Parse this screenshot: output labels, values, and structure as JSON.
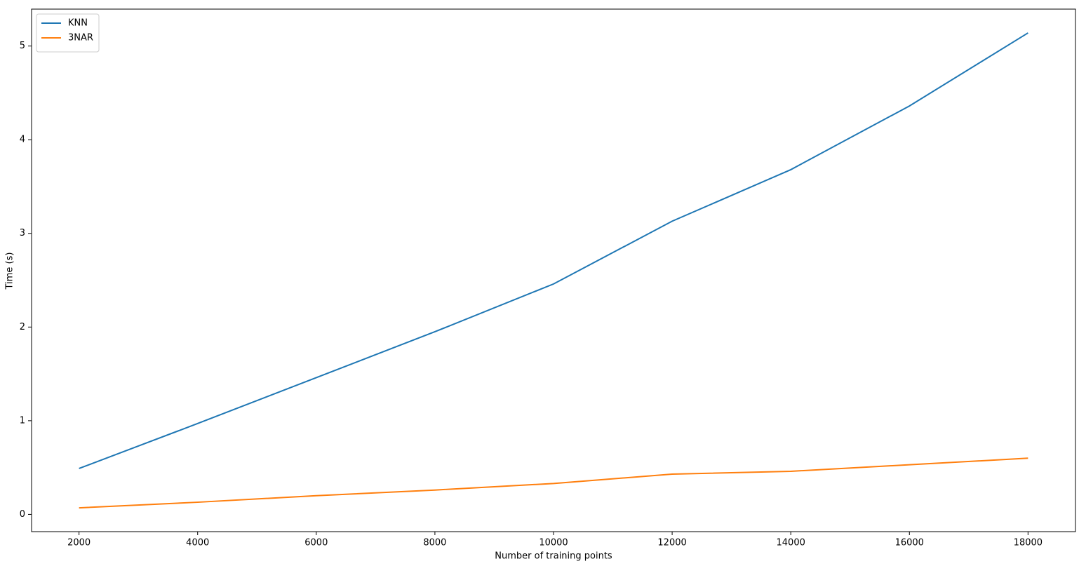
{
  "chart_data": {
    "type": "line",
    "xlabel": "Number of training points",
    "ylabel": "Time (s)",
    "x": [
      2000,
      4000,
      6000,
      8000,
      10000,
      12000,
      14000,
      16000,
      18000
    ],
    "series": [
      {
        "name": "KNN",
        "color": "#1f77b4",
        "values": [
          0.49,
          0.97,
          1.46,
          1.95,
          2.46,
          3.13,
          3.68,
          4.36,
          5.14
        ]
      },
      {
        "name": "3NAR",
        "color": "#ff7f0e",
        "values": [
          0.07,
          0.13,
          0.2,
          0.26,
          0.33,
          0.43,
          0.46,
          0.53,
          0.6
        ]
      }
    ],
    "xlim": [
      1200,
      18800
    ],
    "xticks": [
      2000,
      4000,
      6000,
      8000,
      10000,
      12000,
      14000,
      16000,
      18000
    ],
    "ylim": [
      -0.184,
      5.394
    ],
    "yticks": [
      0,
      1,
      2,
      3,
      4,
      5
    ],
    "legend": "upper-left",
    "grid": false
  }
}
